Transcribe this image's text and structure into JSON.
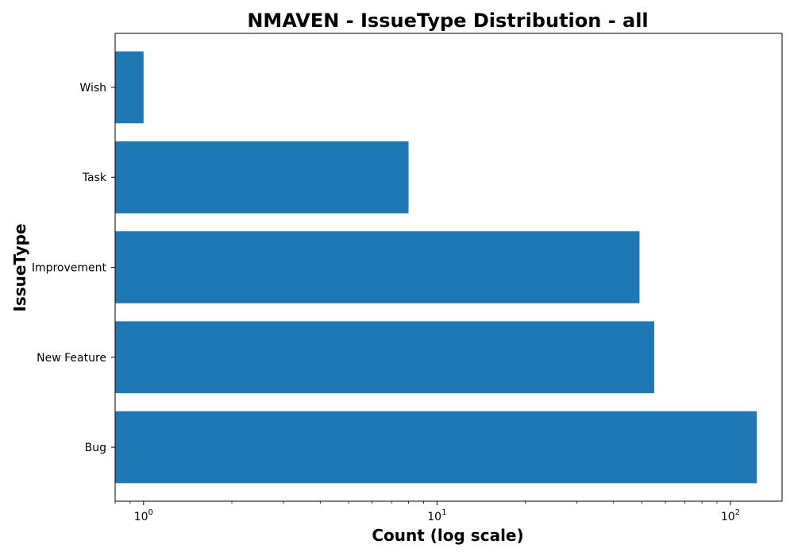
{
  "chart_data": {
    "type": "bar",
    "orientation": "horizontal",
    "title": "NMAVEN - IssueType Distribution - all",
    "xlabel": "Count (log scale)",
    "ylabel": "IssueType",
    "x_scale": "log",
    "xlim": [
      0.8,
      150
    ],
    "x_ticks": [
      {
        "value": 1,
        "base": "10",
        "exp": "0"
      },
      {
        "value": 10,
        "base": "10",
        "exp": "1"
      },
      {
        "value": 100,
        "base": "10",
        "exp": "2"
      }
    ],
    "categories": [
      "Bug",
      "New Feature",
      "Improvement",
      "Task",
      "Wish"
    ],
    "values": [
      123,
      55,
      49,
      8,
      1
    ],
    "bar_color": "#1f77b4",
    "grid": false,
    "legend": "none"
  }
}
